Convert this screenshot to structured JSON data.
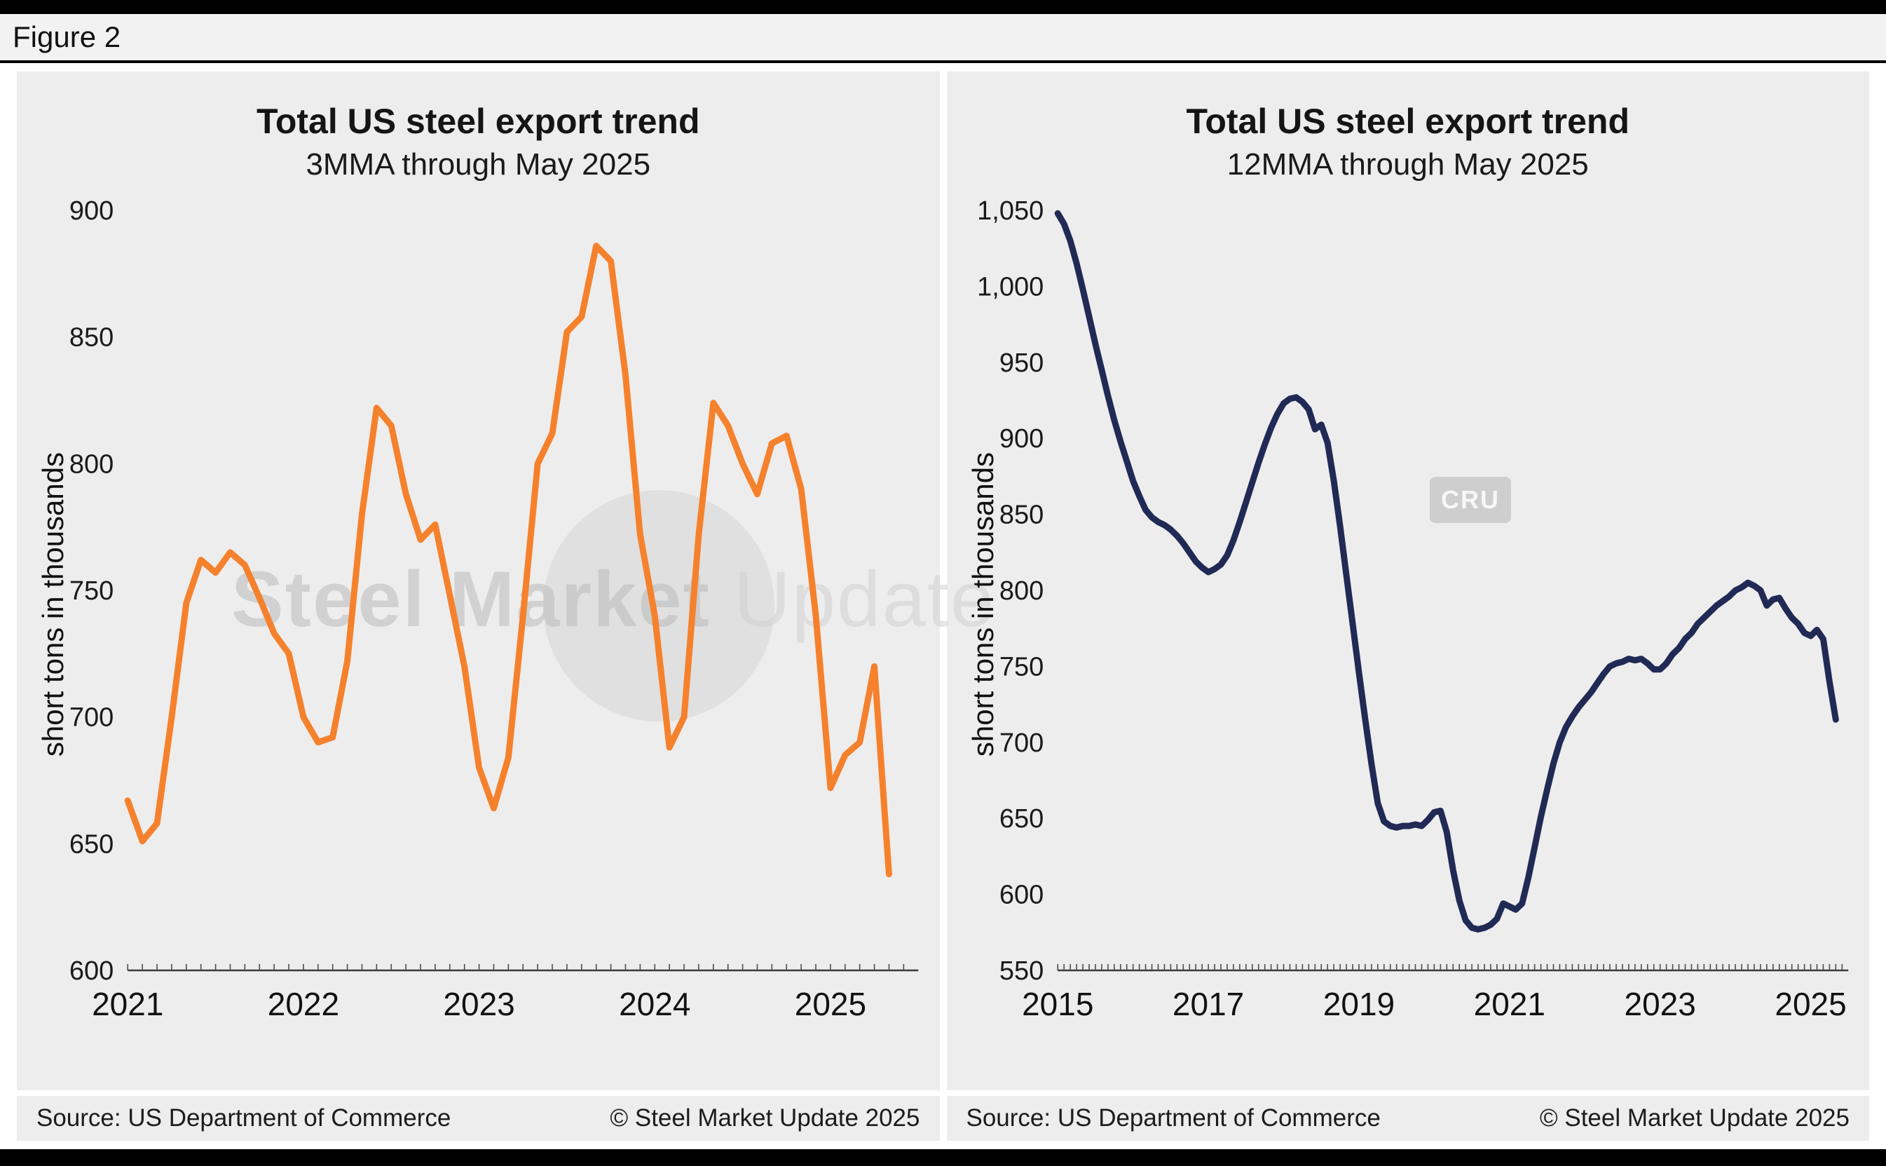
{
  "figure_label": "Figure 2",
  "watermark": {
    "text_main": "Steel Market",
    "text_light": " Update",
    "logo": "CRU"
  },
  "chart_data": [
    {
      "type": "line",
      "title": "Total US steel export trend",
      "subtitle": "3MMA through May 2025",
      "ylabel": "short tons in thousands",
      "source": "Source: US Department of Commerce",
      "copyright": "© Steel Market Update 2025",
      "color": "#F5812D",
      "ylim": [
        600,
        900
      ],
      "ytick_step": 50,
      "frequency": "monthly",
      "start": "2021-01",
      "end": "2025-05",
      "x_ticks": [
        "2021",
        "2022",
        "2023",
        "2024",
        "2025"
      ],
      "grid": false,
      "legend": false,
      "values": [
        667,
        651,
        658,
        700,
        745,
        762,
        757,
        765,
        760,
        747,
        733,
        725,
        700,
        690,
        692,
        722,
        780,
        822,
        815,
        788,
        770,
        776,
        748,
        720,
        680,
        664,
        684,
        740,
        800,
        812,
        852,
        858,
        886,
        880,
        835,
        772,
        740,
        688,
        700,
        772,
        824,
        815,
        800,
        788,
        808,
        811,
        790,
        740,
        672,
        685,
        690,
        720,
        638
      ]
    },
    {
      "type": "line",
      "title": "Total US steel export trend",
      "subtitle": "12MMA through May 2025",
      "ylabel": "short tons in thousands",
      "source": "Source: US Department of Commerce",
      "copyright": "© Steel Market Update 2025",
      "color": "#212A55",
      "ylim": [
        550,
        1050
      ],
      "ytick_step": 50,
      "frequency": "monthly",
      "start": "2015-01",
      "end": "2025-05",
      "x_ticks": [
        "2015",
        "2017",
        "2019",
        "2021",
        "2023",
        "2025"
      ],
      "grid": false,
      "legend": false,
      "values": [
        1048,
        1041,
        1030,
        1015,
        998,
        980,
        962,
        945,
        928,
        912,
        898,
        885,
        872,
        862,
        853,
        848,
        845,
        843,
        840,
        836,
        831,
        825,
        819,
        815,
        812,
        814,
        817,
        823,
        833,
        845,
        858,
        871,
        884,
        896,
        907,
        916,
        923,
        926,
        927,
        924,
        919,
        906,
        909,
        897,
        872,
        842,
        810,
        778,
        746,
        715,
        686,
        660,
        648,
        645,
        644,
        645,
        645,
        646,
        645,
        649,
        654,
        655,
        641,
        616,
        596,
        583,
        578,
        577,
        578,
        580,
        584,
        594,
        592,
        590,
        594,
        611,
        631,
        651,
        669,
        686,
        700,
        710,
        717,
        723,
        728,
        733,
        739,
        745,
        750,
        752,
        753,
        755,
        754,
        755,
        752,
        748,
        748,
        752,
        758,
        762,
        768,
        772,
        778,
        782,
        786,
        790,
        793,
        796,
        800,
        802,
        805,
        803,
        800,
        790,
        794,
        795,
        788,
        782,
        778,
        772,
        770,
        774,
        768,
        740,
        715
      ]
    }
  ]
}
